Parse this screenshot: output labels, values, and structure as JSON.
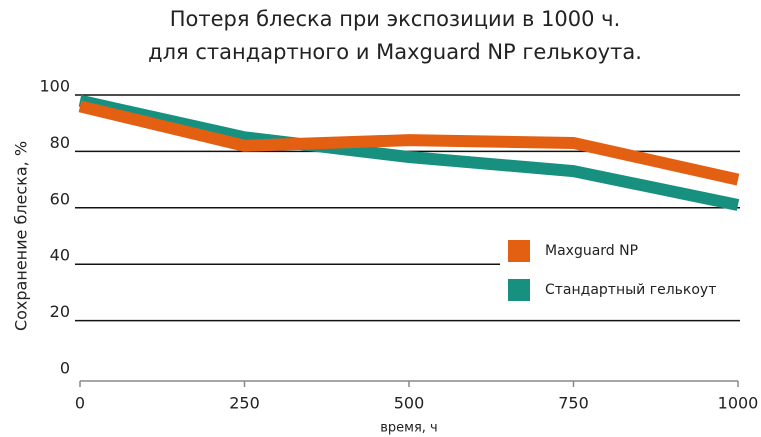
{
  "chart_data": {
    "type": "line",
    "title": [
      "Потеря блеска при экспозиции в 1000 ч.",
      "для стандартного и Maxguard NP гелькоута."
    ],
    "x_label": "время, ч",
    "y_label": "Сохранение блеска, %",
    "x": [
      0,
      250,
      500,
      750,
      1000
    ],
    "series": [
      {
        "name": "Maxguard NP",
        "color": "#e35f12",
        "values": [
          96,
          82,
          84,
          83,
          70
        ]
      },
      {
        "name": "Стандартный гелькоут",
        "color": "#17907f",
        "values": [
          98,
          85,
          78,
          73,
          61
        ]
      }
    ],
    "xlim": [
      0,
      1000
    ],
    "xticks": [
      0,
      250,
      500,
      750,
      1000
    ],
    "ylim": [
      0,
      100
    ],
    "yticks": [
      0,
      20,
      40,
      60,
      80,
      100
    ],
    "grid": true,
    "legend": "right"
  }
}
